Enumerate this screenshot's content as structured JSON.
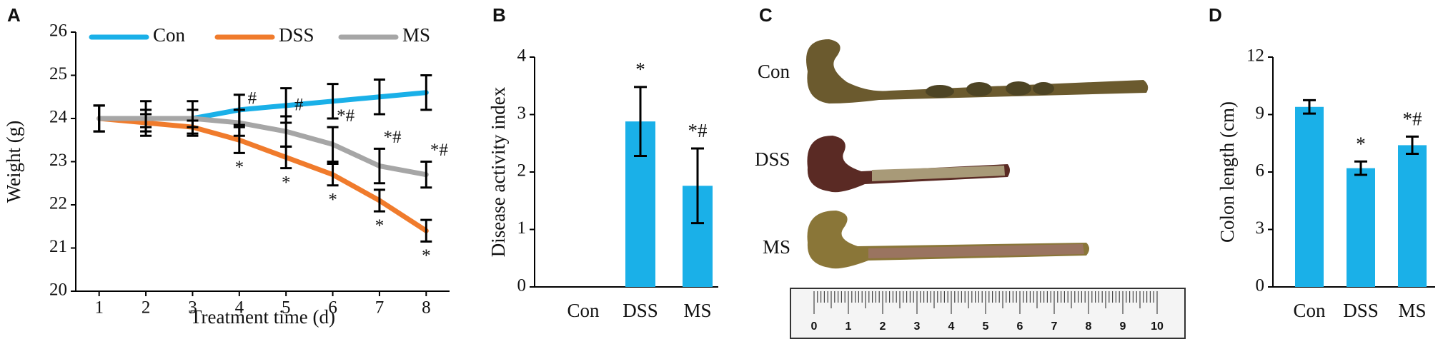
{
  "chart_data": [
    {
      "type": "line",
      "panel": "A",
      "x": [
        1,
        2,
        3,
        4,
        5,
        6,
        7,
        8
      ],
      "xlim": [
        0.5,
        8.5
      ],
      "xticks": [
        1,
        2,
        3,
        4,
        5,
        6,
        7,
        8
      ],
      "ylim": [
        20,
        26
      ],
      "yticks": [
        20,
        21,
        22,
        23,
        24,
        25,
        26
      ],
      "xlabel": "Treatment time (d)",
      "ylabel": "Weight (g)",
      "series": [
        {
          "name": "Con",
          "color": "#1ab0e8",
          "values": [
            24.0,
            24.0,
            24.0,
            24.2,
            24.3,
            24.4,
            24.5,
            24.6
          ],
          "errors": [
            0.3,
            0.4,
            0.4,
            0.35,
            0.4,
            0.4,
            0.4,
            0.4
          ],
          "significance": [
            null,
            null,
            null,
            null,
            null,
            null,
            null,
            null
          ]
        },
        {
          "name": "DSS",
          "color": "#f07b2c",
          "values": [
            24.0,
            23.9,
            23.8,
            23.5,
            23.1,
            22.7,
            22.1,
            21.4
          ],
          "errors": [
            0.3,
            0.2,
            0.15,
            0.3,
            0.25,
            0.25,
            0.25,
            0.25
          ],
          "significance": [
            null,
            null,
            null,
            "*",
            "*",
            "*",
            "*",
            "*"
          ]
        },
        {
          "name": "MS",
          "color": "#a6a6a6",
          "values": [
            24.0,
            24.0,
            24.0,
            23.9,
            23.7,
            23.4,
            22.9,
            22.7
          ],
          "errors": [
            0.3,
            0.2,
            0.2,
            0.3,
            0.35,
            0.4,
            0.4,
            0.3
          ],
          "significance": [
            null,
            null,
            null,
            "#",
            "#",
            "*#",
            "*#",
            "*#"
          ]
        }
      ]
    },
    {
      "type": "bar",
      "panel": "B",
      "categories": [
        "Con",
        "DSS",
        "MS"
      ],
      "values": [
        0,
        2.88,
        1.76
      ],
      "errors": [
        null,
        0.6,
        0.65
      ],
      "significance": [
        null,
        "*",
        "*#"
      ],
      "color": "#1ab0e8",
      "ylim": [
        0,
        4
      ],
      "yticks": [
        0,
        1,
        2,
        3,
        4
      ],
      "ylabel": "Disease activity index"
    },
    {
      "type": "photo",
      "panel": "C",
      "labels": [
        "Con",
        "DSS",
        "MS"
      ],
      "ruler_ticks": [
        0,
        1,
        2,
        3,
        4,
        5,
        6,
        7,
        8,
        9,
        10
      ]
    },
    {
      "type": "bar",
      "panel": "D",
      "categories": [
        "Con",
        "DSS",
        "MS"
      ],
      "values": [
        9.4,
        6.2,
        7.4
      ],
      "errors": [
        0.35,
        0.35,
        0.45
      ],
      "significance": [
        null,
        "*",
        "*#"
      ],
      "color": "#1ab0e8",
      "ylim": [
        0,
        12
      ],
      "yticks": [
        0,
        3,
        6,
        9,
        12
      ],
      "ylabel": "Colon length (cm)"
    }
  ]
}
